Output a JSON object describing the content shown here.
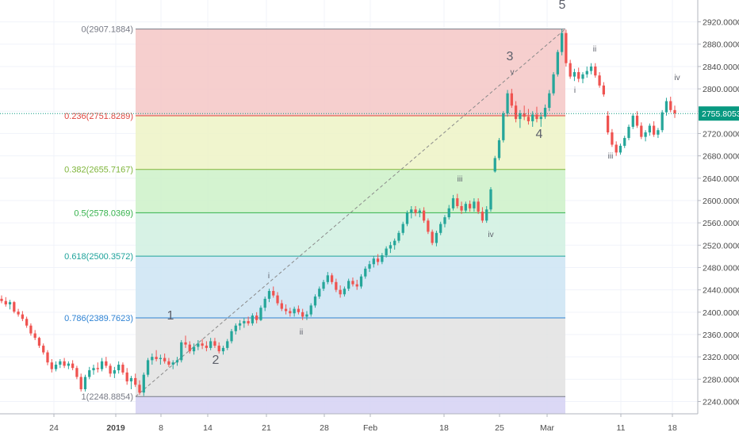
{
  "chart_data": {
    "type": "candlestick",
    "y_axis": {
      "position": "right",
      "range": [
        2218,
        2935
      ],
      "ticks": [
        "2920.0000",
        "2880.0000",
        "2840.0000",
        "2800.0000",
        "2760.0000",
        "2720.0000",
        "2680.0000",
        "2640.0000",
        "2600.0000",
        "2560.0000",
        "2520.0000",
        "2480.0000",
        "2440.0000",
        "2400.0000",
        "2360.0000",
        "2320.0000",
        "2280.0000",
        "2240.0000"
      ]
    },
    "x_axis": {
      "ticks": [
        {
          "label": "24",
          "bold": false
        },
        {
          "label": "2019",
          "bold": true
        },
        {
          "label": "8",
          "bold": false
        },
        {
          "label": "14",
          "bold": false
        },
        {
          "label": "21",
          "bold": false
        },
        {
          "label": "28",
          "bold": false
        },
        {
          "label": "Feb",
          "bold": false
        },
        {
          "label": "18",
          "bold": false
        },
        {
          "label": "25",
          "bold": false
        },
        {
          "label": "Mar",
          "bold": false
        },
        {
          "label": "11",
          "bold": false
        },
        {
          "label": "18",
          "bold": false
        }
      ]
    },
    "current_price": {
      "value": 2755.8053,
      "label": "2755.8053",
      "color": "#089981"
    },
    "fib_retracement": {
      "levels": [
        {
          "ratio": 0,
          "price": 2907.1884,
          "label": "0(2907.1884)",
          "line_color": "#787b86",
          "fill": "#f4c7c6"
        },
        {
          "ratio": 0.236,
          "price": 2751.8289,
          "label": "0.236(2751.8289)",
          "line_color": "#e0463f",
          "fill": "#edf3c5"
        },
        {
          "ratio": 0.382,
          "price": 2655.7167,
          "label": "0.382(2655.7167)",
          "line_color": "#7fb53b",
          "fill": "#cdf1c8"
        },
        {
          "ratio": 0.5,
          "price": 2578.0369,
          "label": "0.5(2578.0369)",
          "line_color": "#34b24b",
          "fill": "#d0f0e0"
        },
        {
          "ratio": 0.618,
          "price": 2500.3572,
          "label": "0.618(2500.3572)",
          "line_color": "#1fa39b",
          "fill": "#cde4f3"
        },
        {
          "ratio": 0.786,
          "price": 2389.7623,
          "label": "0.786(2389.7623)",
          "line_color": "#2f83d4",
          "fill": "#e2e2e2"
        },
        {
          "ratio": 1,
          "price": 2248.8854,
          "label": "1(2248.8854)",
          "line_color": "#787b86",
          "fill": "#d5d1f3"
        }
      ]
    },
    "wave_labels": [
      {
        "text": "1",
        "major": true
      },
      {
        "text": "2",
        "major": true
      },
      {
        "text": "3",
        "major": true
      },
      {
        "text": "4",
        "major": true
      },
      {
        "text": "5",
        "major": true
      },
      {
        "text": "i",
        "major": false
      },
      {
        "text": "ii",
        "major": false
      },
      {
        "text": "iii",
        "major": false
      },
      {
        "text": "iv",
        "major": false
      },
      {
        "text": "v",
        "major": false
      },
      {
        "text": "i",
        "major": false
      },
      {
        "text": "ii",
        "major": false
      },
      {
        "text": "iii",
        "major": false
      },
      {
        "text": "iv",
        "major": false
      }
    ],
    "colors": {
      "up": "#26a69a",
      "down": "#ef5350",
      "axis_text": "#4a4a4a",
      "grid": "#f0f3fa"
    },
    "candles": [
      [
        2424,
        2430,
        2416,
        2420
      ],
      [
        2420,
        2427,
        2410,
        2414
      ],
      [
        2414,
        2422,
        2405,
        2418
      ],
      [
        2418,
        2420,
        2398,
        2401
      ],
      [
        2401,
        2406,
        2392,
        2396
      ],
      [
        2396,
        2402,
        2384,
        2388
      ],
      [
        2388,
        2392,
        2372,
        2376
      ],
      [
        2376,
        2380,
        2358,
        2362
      ],
      [
        2362,
        2368,
        2350,
        2354
      ],
      [
        2354,
        2356,
        2336,
        2340
      ],
      [
        2340,
        2344,
        2324,
        2328
      ],
      [
        2328,
        2332,
        2305,
        2310
      ],
      [
        2310,
        2316,
        2292,
        2298
      ],
      [
        2298,
        2312,
        2294,
        2306
      ],
      [
        2306,
        2316,
        2300,
        2312
      ],
      [
        2312,
        2318,
        2300,
        2304
      ],
      [
        2304,
        2312,
        2298,
        2308
      ],
      [
        2308,
        2314,
        2296,
        2300
      ],
      [
        2300,
        2304,
        2280,
        2284
      ],
      [
        2284,
        2290,
        2258,
        2262
      ],
      [
        2262,
        2288,
        2258,
        2284
      ],
      [
        2284,
        2302,
        2280,
        2296
      ],
      [
        2296,
        2306,
        2288,
        2300
      ],
      [
        2300,
        2310,
        2292,
        2298
      ],
      [
        2298,
        2318,
        2294,
        2312
      ],
      [
        2312,
        2320,
        2300,
        2304
      ],
      [
        2304,
        2308,
        2284,
        2290
      ],
      [
        2290,
        2302,
        2282,
        2296
      ],
      [
        2296,
        2312,
        2290,
        2306
      ],
      [
        2306,
        2310,
        2288,
        2292
      ],
      [
        2292,
        2300,
        2270,
        2276
      ],
      [
        2276,
        2286,
        2262,
        2282
      ],
      [
        2282,
        2290,
        2266,
        2270
      ],
      [
        2270,
        2278,
        2252,
        2256
      ],
      [
        2256,
        2292,
        2250,
        2288
      ],
      [
        2288,
        2318,
        2284,
        2314
      ],
      [
        2314,
        2326,
        2306,
        2320
      ],
      [
        2320,
        2332,
        2312,
        2316
      ],
      [
        2316,
        2324,
        2306,
        2318
      ],
      [
        2318,
        2326,
        2308,
        2312
      ],
      [
        2312,
        2318,
        2302,
        2306
      ],
      [
        2306,
        2314,
        2298,
        2310
      ],
      [
        2310,
        2320,
        2304,
        2314
      ],
      [
        2314,
        2350,
        2310,
        2346
      ],
      [
        2346,
        2358,
        2336,
        2342
      ],
      [
        2342,
        2348,
        2326,
        2330
      ],
      [
        2330,
        2344,
        2324,
        2338
      ],
      [
        2338,
        2350,
        2332,
        2344
      ],
      [
        2344,
        2352,
        2334,
        2340
      ],
      [
        2340,
        2348,
        2330,
        2336
      ],
      [
        2336,
        2354,
        2332,
        2348
      ],
      [
        2348,
        2354,
        2336,
        2340
      ],
      [
        2340,
        2346,
        2326,
        2330
      ],
      [
        2330,
        2340,
        2324,
        2336
      ],
      [
        2336,
        2352,
        2332,
        2348
      ],
      [
        2348,
        2370,
        2344,
        2366
      ],
      [
        2366,
        2380,
        2360,
        2376
      ],
      [
        2376,
        2386,
        2368,
        2380
      ],
      [
        2380,
        2390,
        2372,
        2384
      ],
      [
        2384,
        2392,
        2376,
        2380
      ],
      [
        2380,
        2398,
        2376,
        2394
      ],
      [
        2394,
        2400,
        2380,
        2386
      ],
      [
        2386,
        2412,
        2384,
        2408
      ],
      [
        2408,
        2428,
        2402,
        2424
      ],
      [
        2424,
        2442,
        2418,
        2438
      ],
      [
        2438,
        2446,
        2426,
        2430
      ],
      [
        2430,
        2436,
        2412,
        2416
      ],
      [
        2416,
        2422,
        2402,
        2406
      ],
      [
        2406,
        2414,
        2396,
        2402
      ],
      [
        2402,
        2408,
        2392,
        2398
      ],
      [
        2398,
        2410,
        2392,
        2406
      ],
      [
        2406,
        2412,
        2396,
        2400
      ],
      [
        2400,
        2406,
        2386,
        2392
      ],
      [
        2392,
        2402,
        2386,
        2396
      ],
      [
        2396,
        2416,
        2392,
        2412
      ],
      [
        2412,
        2432,
        2408,
        2428
      ],
      [
        2428,
        2446,
        2424,
        2442
      ],
      [
        2442,
        2458,
        2438,
        2454
      ],
      [
        2454,
        2472,
        2450,
        2466
      ],
      [
        2466,
        2470,
        2450,
        2454
      ],
      [
        2454,
        2460,
        2436,
        2440
      ],
      [
        2440,
        2448,
        2426,
        2432
      ],
      [
        2432,
        2446,
        2428,
        2442
      ],
      [
        2442,
        2460,
        2438,
        2456
      ],
      [
        2456,
        2462,
        2446,
        2450
      ],
      [
        2450,
        2458,
        2440,
        2446
      ],
      [
        2446,
        2468,
        2442,
        2464
      ],
      [
        2464,
        2482,
        2460,
        2478
      ],
      [
        2478,
        2492,
        2472,
        2486
      ],
      [
        2486,
        2500,
        2480,
        2496
      ],
      [
        2496,
        2504,
        2484,
        2490
      ],
      [
        2490,
        2506,
        2486,
        2502
      ],
      [
        2502,
        2518,
        2498,
        2514
      ],
      [
        2514,
        2526,
        2506,
        2520
      ],
      [
        2520,
        2532,
        2512,
        2528
      ],
      [
        2528,
        2546,
        2524,
        2542
      ],
      [
        2542,
        2562,
        2538,
        2558
      ],
      [
        2558,
        2582,
        2554,
        2578
      ],
      [
        2578,
        2590,
        2568,
        2584
      ],
      [
        2584,
        2590,
        2572,
        2578
      ],
      [
        2578,
        2586,
        2570,
        2582
      ],
      [
        2582,
        2588,
        2560,
        2564
      ],
      [
        2564,
        2568,
        2540,
        2544
      ],
      [
        2544,
        2548,
        2520,
        2524
      ],
      [
        2524,
        2546,
        2518,
        2542
      ],
      [
        2542,
        2562,
        2538,
        2558
      ],
      [
        2558,
        2574,
        2552,
        2570
      ],
      [
        2570,
        2592,
        2566,
        2586
      ],
      [
        2586,
        2610,
        2582,
        2604
      ],
      [
        2604,
        2612,
        2586,
        2590
      ],
      [
        2590,
        2598,
        2576,
        2582
      ],
      [
        2582,
        2598,
        2578,
        2594
      ],
      [
        2594,
        2600,
        2580,
        2586
      ],
      [
        2586,
        2604,
        2580,
        2598
      ],
      [
        2598,
        2604,
        2576,
        2580
      ],
      [
        2580,
        2588,
        2560,
        2564
      ],
      [
        2564,
        2590,
        2560,
        2584
      ],
      [
        2584,
        2624,
        2580,
        2620
      ],
      [
        2652,
        2680,
        2650,
        2676
      ],
      [
        2676,
        2712,
        2672,
        2708
      ],
      [
        2708,
        2760,
        2704,
        2756
      ],
      [
        2756,
        2798,
        2750,
        2792
      ],
      [
        2792,
        2800,
        2766,
        2770
      ],
      [
        2770,
        2778,
        2740,
        2746
      ],
      [
        2746,
        2762,
        2730,
        2756
      ],
      [
        2756,
        2770,
        2744,
        2750
      ],
      [
        2750,
        2764,
        2736,
        2742
      ],
      [
        2742,
        2760,
        2732,
        2754
      ],
      [
        2754,
        2768,
        2740,
        2746
      ],
      [
        2746,
        2758,
        2732,
        2750
      ],
      [
        2750,
        2772,
        2746,
        2766
      ],
      [
        2766,
        2798,
        2760,
        2792
      ],
      [
        2792,
        2830,
        2788,
        2826
      ],
      [
        2826,
        2870,
        2822,
        2866
      ],
      [
        2866,
        2907,
        2860,
        2900
      ],
      [
        2900,
        2906,
        2840,
        2846
      ],
      [
        2846,
        2852,
        2818,
        2822
      ],
      [
        2822,
        2836,
        2814,
        2830
      ],
      [
        2830,
        2838,
        2812,
        2818
      ],
      [
        2818,
        2830,
        2810,
        2826
      ],
      [
        2826,
        2840,
        2820,
        2832
      ],
      [
        2832,
        2846,
        2826,
        2840
      ],
      [
        2840,
        2846,
        2820,
        2824
      ],
      [
        2824,
        2830,
        2802,
        2806
      ],
      [
        2806,
        2812,
        2786,
        2790
      ],
      [
        2752,
        2760,
        2718,
        2722
      ],
      [
        2722,
        2728,
        2696,
        2700
      ],
      [
        2700,
        2706,
        2680,
        2686
      ],
      [
        2686,
        2702,
        2682,
        2698
      ],
      [
        2698,
        2716,
        2694,
        2712
      ],
      [
        2712,
        2736,
        2708,
        2732
      ],
      [
        2732,
        2756,
        2728,
        2752
      ],
      [
        2752,
        2760,
        2730,
        2734
      ],
      [
        2734,
        2740,
        2710,
        2714
      ],
      [
        2714,
        2726,
        2706,
        2722
      ],
      [
        2722,
        2738,
        2716,
        2734
      ],
      [
        2734,
        2742,
        2714,
        2718
      ],
      [
        2718,
        2730,
        2712,
        2726
      ],
      [
        2726,
        2762,
        2722,
        2758
      ],
      [
        2758,
        2784,
        2752,
        2778
      ],
      [
        2778,
        2786,
        2758,
        2762
      ],
      [
        2762,
        2770,
        2748,
        2756
      ]
    ]
  }
}
